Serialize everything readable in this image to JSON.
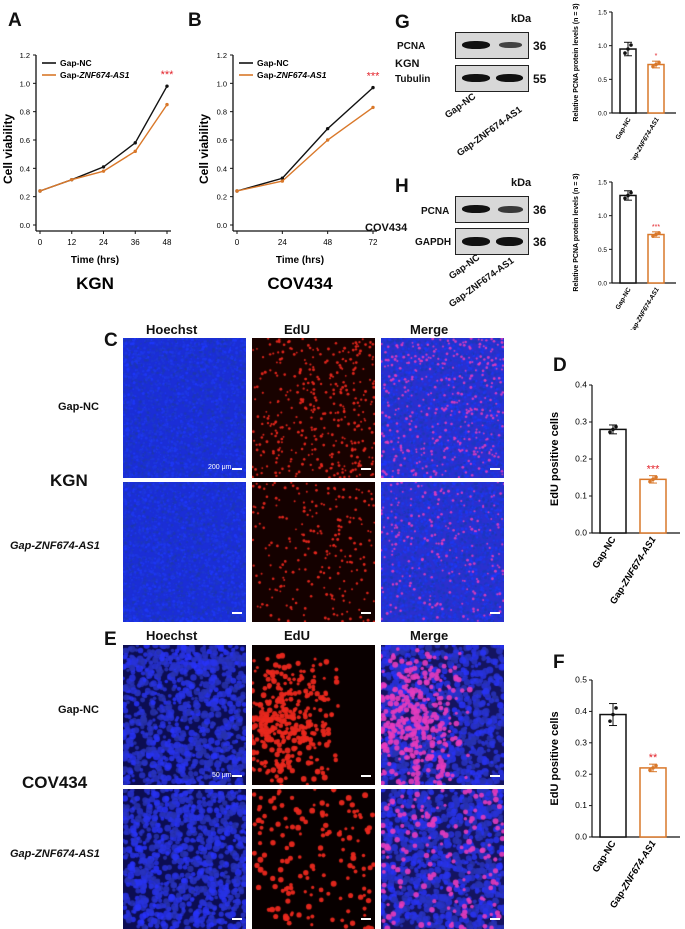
{
  "panels": {
    "A": "A",
    "B": "B",
    "C": "C",
    "D": "D",
    "E": "E",
    "F": "F",
    "G": "G",
    "H": "H"
  },
  "lines": [
    {
      "panel": "A",
      "cell_line": "KGN",
      "chart_data": {
        "type": "line",
        "xlabel": "Time (hrs)",
        "ylabel": "Cell viability",
        "x": [
          0,
          12,
          24,
          36,
          48
        ],
        "ylim": [
          0,
          1.2
        ],
        "yticks": [
          "0.0",
          "0.2",
          "0.4",
          "0.6",
          "0.8",
          "1.0",
          "1.2"
        ],
        "series": [
          {
            "name": "Gap-NC",
            "values": [
              0.24,
              0.32,
              0.41,
              0.58,
              0.98
            ],
            "color": "#111111"
          },
          {
            "name": "Gap-ZNF674-AS1",
            "values": [
              0.24,
              0.32,
              0.38,
              0.52,
              0.85
            ],
            "color": "#d9782a"
          }
        ],
        "annotation": "***"
      }
    },
    {
      "panel": "B",
      "cell_line": "COV434",
      "chart_data": {
        "type": "line",
        "xlabel": "Time (hrs)",
        "ylabel": "Cell viability",
        "x": [
          0,
          24,
          48,
          72
        ],
        "ylim": [
          0,
          1.2
        ],
        "yticks": [
          "0.0",
          "0.2",
          "0.4",
          "0.6",
          "0.8",
          "1.0",
          "1.2"
        ],
        "series": [
          {
            "name": "Gap-NC",
            "values": [
              0.24,
              0.33,
              0.68,
              0.97
            ],
            "color": "#111111"
          },
          {
            "name": "Gap-ZNF674-AS1",
            "values": [
              0.24,
              0.31,
              0.6,
              0.83
            ],
            "color": "#d9782a"
          }
        ],
        "annotation": "***"
      }
    }
  ],
  "bars": [
    {
      "panel": "D",
      "chart_data": {
        "type": "bar",
        "ylabel": "EdU positive cells",
        "categories": [
          "Gap-NC",
          "Gap-ZNF674-AS1"
        ],
        "values": [
          0.28,
          0.145
        ],
        "errors": [
          0.012,
          0.01
        ],
        "ylim": [
          0,
          0.4
        ],
        "yticks": [
          "0.0",
          "0.1",
          "0.2",
          "0.3",
          "0.4"
        ],
        "annotation": "***"
      }
    },
    {
      "panel": "F",
      "chart_data": {
        "type": "bar",
        "ylabel": "EdU positive cells",
        "categories": [
          "Gap-NC",
          "Gap-ZNF674-AS1"
        ],
        "values": [
          0.39,
          0.22
        ],
        "errors": [
          0.035,
          0.012
        ],
        "ylim": [
          0,
          0.5
        ],
        "yticks": [
          "0.0",
          "0.1",
          "0.2",
          "0.3",
          "0.4",
          "0.5"
        ],
        "annotation": "**"
      }
    },
    {
      "panel": "G",
      "chart_data": {
        "type": "bar",
        "ylabel": "Relative PCNA protein levels (n = 3)",
        "categories": [
          "Gap-NC",
          "Gap-ZNF674-AS1"
        ],
        "values": [
          0.95,
          0.72
        ],
        "errors": [
          0.1,
          0.05
        ],
        "ylim": [
          0,
          1.5
        ],
        "yticks": [
          "0.0",
          "0.5",
          "1.0",
          "1.5"
        ],
        "annotation": "*"
      }
    },
    {
      "panel": "H",
      "chart_data": {
        "type": "bar",
        "ylabel": "Relative PCNA protein levels (n = 3)",
        "categories": [
          "Gap-NC",
          "Gap-ZNF674-AS1"
        ],
        "values": [
          1.3,
          0.72
        ],
        "errors": [
          0.07,
          0.04
        ],
        "ylim": [
          0,
          1.5
        ],
        "yticks": [
          "0.0",
          "0.5",
          "1.0",
          "1.5"
        ],
        "annotation": "***"
      }
    }
  ],
  "western": {
    "kda_label": "kDa",
    "G": {
      "cell_line": "KGN",
      "rows": [
        {
          "label": "PCNA",
          "kda": "36"
        },
        {
          "label": "Tubulin",
          "kda": "55"
        }
      ],
      "lanes": [
        "Gap-NC",
        "Gap-ZNF674-AS1"
      ]
    },
    "H": {
      "cell_line": "COV434",
      "rows": [
        {
          "label": "PCNA",
          "kda": "36"
        },
        {
          "label": "GAPDH",
          "kda": "36"
        }
      ],
      "lanes": [
        "Gap-NC",
        "Gap-ZNF674-AS1"
      ]
    }
  },
  "micro": {
    "columns": [
      "Hoechst",
      "EdU",
      "Merge"
    ],
    "C": {
      "cell_line": "KGN",
      "rows": [
        "Gap-NC",
        "Gap-ZNF674-AS1"
      ],
      "scale": "200 μm"
    },
    "E": {
      "cell_line": "COV434",
      "rows": [
        "Gap-NC",
        "Gap-ZNF674-AS1"
      ],
      "scale": "50 μm"
    }
  }
}
